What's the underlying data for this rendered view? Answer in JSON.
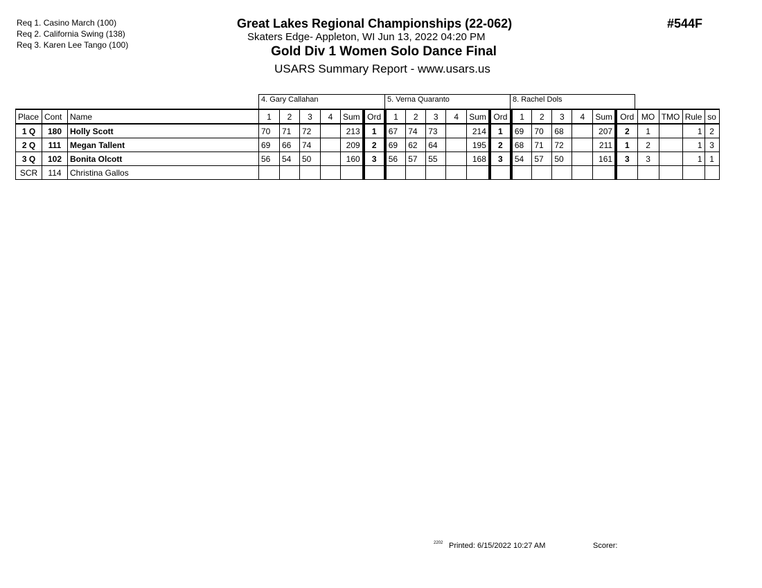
{
  "requirements": [
    "Req  1.  Casino March (100)",
    "Req  2.  California Swing (138)",
    "Req  3.  Karen Lee Tango (100)"
  ],
  "header": {
    "title": "Great Lakes Regional Championships (22-062)",
    "location": "Skaters Edge- Appleton, WI  Jun 13, 2022  04:20 PM",
    "event": "Gold Div 1 Women Solo Dance Final",
    "report": "USARS Summary Report - www.usars.us",
    "event_code": "#544F"
  },
  "judges": [
    "4.  Gary Callahan",
    "5.  Verna  Quaranto",
    "8.  Rachel  Dols"
  ],
  "columns": {
    "place": "Place",
    "cont": "Cont",
    "name": "Name",
    "marks": [
      "1",
      "2",
      "3",
      "4"
    ],
    "sum": "Sum",
    "ord": "Ord",
    "mo": "MO",
    "tmo": "TMO",
    "rule": "Rule",
    "so": "so"
  },
  "rows": [
    {
      "place": "1 Q",
      "cont": "180",
      "name": "Holly Scott",
      "bold": true,
      "judges": [
        {
          "m": [
            "70",
            "71",
            "72",
            ""
          ],
          "sum": "213",
          "ord": "1"
        },
        {
          "m": [
            "67",
            "74",
            "73",
            ""
          ],
          "sum": "214",
          "ord": "1"
        },
        {
          "m": [
            "69",
            "70",
            "68",
            ""
          ],
          "sum": "207",
          "ord": "2"
        }
      ],
      "mo": "1",
      "tmo": "",
      "rule": "1",
      "so": "2"
    },
    {
      "place": "2 Q",
      "cont": "111",
      "name": "Megan Tallent",
      "bold": true,
      "judges": [
        {
          "m": [
            "69",
            "66",
            "74",
            ""
          ],
          "sum": "209",
          "ord": "2"
        },
        {
          "m": [
            "69",
            "62",
            "64",
            ""
          ],
          "sum": "195",
          "ord": "2"
        },
        {
          "m": [
            "68",
            "71",
            "72",
            ""
          ],
          "sum": "211",
          "ord": "1"
        }
      ],
      "mo": "2",
      "tmo": "",
      "rule": "1",
      "so": "3"
    },
    {
      "place": "3 Q",
      "cont": "102",
      "name": "Bonita Olcott",
      "bold": true,
      "judges": [
        {
          "m": [
            "56",
            "54",
            "50",
            ""
          ],
          "sum": "160",
          "ord": "3"
        },
        {
          "m": [
            "56",
            "57",
            "55",
            ""
          ],
          "sum": "168",
          "ord": "3"
        },
        {
          "m": [
            "54",
            "57",
            "50",
            ""
          ],
          "sum": "161",
          "ord": "3"
        }
      ],
      "mo": "3",
      "tmo": "",
      "rule": "1",
      "so": "1"
    },
    {
      "place": "SCR",
      "cont": "114",
      "name": "Christina Gallos",
      "bold": false,
      "judges": [
        {
          "m": [
            "",
            "",
            "",
            ""
          ],
          "sum": "",
          "ord": ""
        },
        {
          "m": [
            "",
            "",
            "",
            ""
          ],
          "sum": "",
          "ord": ""
        },
        {
          "m": [
            "",
            "",
            "",
            ""
          ],
          "sum": "",
          "ord": ""
        }
      ],
      "mo": "",
      "tmo": "",
      "rule": "",
      "so": ""
    }
  ],
  "footer": {
    "code": "2202",
    "printed": "Printed:  6/15/2022  10:27 AM",
    "scorer": "Scorer:"
  }
}
